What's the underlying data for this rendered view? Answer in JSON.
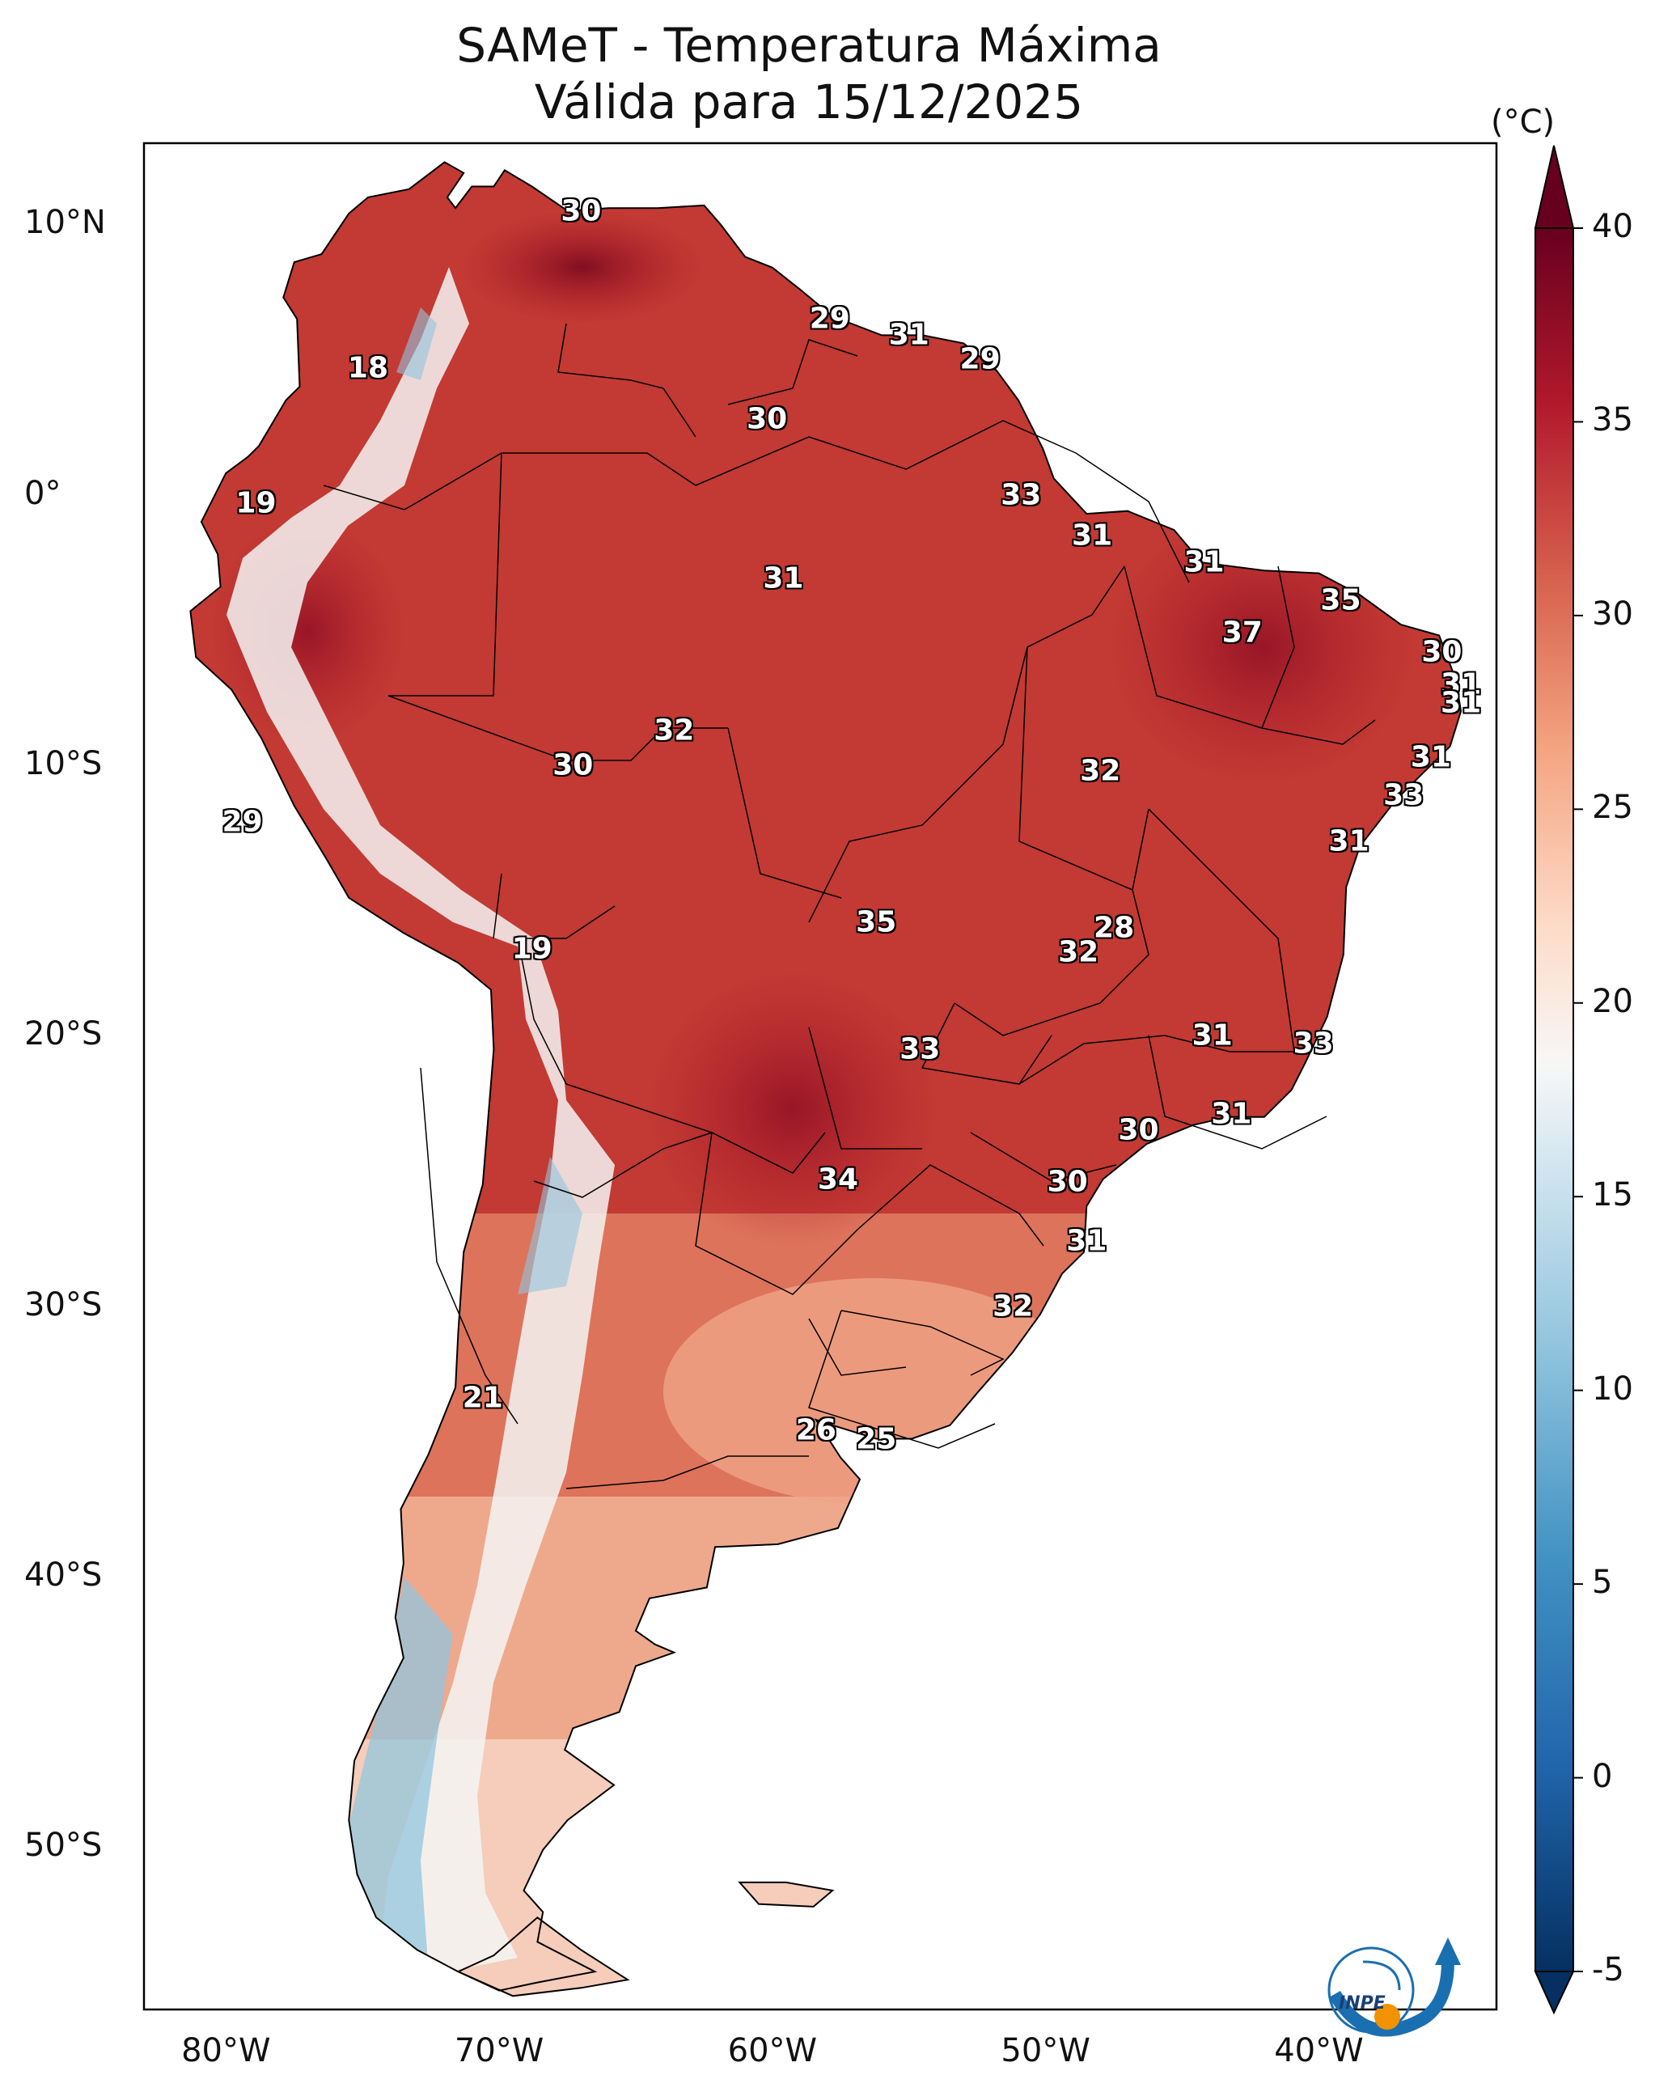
{
  "title": {
    "line1": "SAMeT - Temperatura Máxima",
    "line2": "Válida para 15/12/2025"
  },
  "map": {
    "lat_ticks": [
      {
        "lat": 10,
        "label": "10°N"
      },
      {
        "lat": 0,
        "label": "0°"
      },
      {
        "lat": -10,
        "label": "10°S"
      },
      {
        "lat": -20,
        "label": "20°S"
      },
      {
        "lat": -30,
        "label": "30°S"
      },
      {
        "lat": -40,
        "label": "40°S"
      },
      {
        "lat": -50,
        "label": "50°S"
      }
    ],
    "lon_ticks": [
      {
        "lon": -80,
        "label": "80°W"
      },
      {
        "lon": -70,
        "label": "70°W"
      },
      {
        "lon": -60,
        "label": "60°W"
      },
      {
        "lon": -50,
        "label": "50°W"
      },
      {
        "lon": -40,
        "label": "40°W"
      }
    ],
    "extent": {
      "lon_min": -83,
      "lon_max": -33.5,
      "lat_min": -56,
      "lat_max": 13
    },
    "temperature_labels": [
      {
        "value": "30",
        "lat": 10.5,
        "lon": -67
      },
      {
        "value": "29",
        "lat": 6.5,
        "lon": -57.9
      },
      {
        "value": "31",
        "lat": 5.9,
        "lon": -55.0
      },
      {
        "value": "29",
        "lat": 5.0,
        "lon": -52.4
      },
      {
        "value": "18",
        "lat": 4.7,
        "lon": -74.8
      },
      {
        "value": "30",
        "lat": 2.8,
        "lon": -60.2
      },
      {
        "value": "19",
        "lat": -0.3,
        "lon": -78.9
      },
      {
        "value": "33",
        "lat": 0.0,
        "lon": -50.9
      },
      {
        "value": "31",
        "lat": -1.5,
        "lon": -48.3
      },
      {
        "value": "31",
        "lat": -2.5,
        "lon": -44.2
      },
      {
        "value": "31",
        "lat": -3.1,
        "lon": -59.6
      },
      {
        "value": "35",
        "lat": -3.9,
        "lon": -39.2
      },
      {
        "value": "37",
        "lat": -5.1,
        "lon": -42.8
      },
      {
        "value": "30",
        "lat": -5.8,
        "lon": -35.5
      },
      {
        "value": "31",
        "lat": -7.0,
        "lon": -34.8
      },
      {
        "value": "31",
        "lat": -7.7,
        "lon": -34.8
      },
      {
        "value": "32",
        "lat": -8.7,
        "lon": -63.6
      },
      {
        "value": "30",
        "lat": -10.0,
        "lon": -67.3
      },
      {
        "value": "32",
        "lat": -10.2,
        "lon": -48.0
      },
      {
        "value": "31",
        "lat": -9.7,
        "lon": -35.9
      },
      {
        "value": "33",
        "lat": -11.1,
        "lon": -36.9
      },
      {
        "value": "29",
        "lat": -12.1,
        "lon": -79.4
      },
      {
        "value": "31",
        "lat": -12.8,
        "lon": -38.9
      },
      {
        "value": "35",
        "lat": -15.8,
        "lon": -56.2
      },
      {
        "value": "28",
        "lat": -16.0,
        "lon": -47.5
      },
      {
        "value": "32",
        "lat": -16.9,
        "lon": -48.8
      },
      {
        "value": "19",
        "lat": -16.8,
        "lon": -68.8
      },
      {
        "value": "31",
        "lat": -20.0,
        "lon": -43.9
      },
      {
        "value": "33",
        "lat": -20.3,
        "lon": -40.2
      },
      {
        "value": "33",
        "lat": -20.5,
        "lon": -54.6
      },
      {
        "value": "31",
        "lat": -22.9,
        "lon": -43.2
      },
      {
        "value": "30",
        "lat": -23.5,
        "lon": -46.6
      },
      {
        "value": "34",
        "lat": -25.3,
        "lon": -57.6
      },
      {
        "value": "30",
        "lat": -25.4,
        "lon": -49.2
      },
      {
        "value": "31",
        "lat": -27.6,
        "lon": -48.5
      },
      {
        "value": "32",
        "lat": -30.0,
        "lon": -51.2
      },
      {
        "value": "21",
        "lat": -33.4,
        "lon": -70.6
      },
      {
        "value": "26",
        "lat": -34.6,
        "lon": -58.4
      },
      {
        "value": "25",
        "lat": -34.9,
        "lon": -56.2
      }
    ]
  },
  "colorbar": {
    "unit": "(°C)",
    "min": -5,
    "max": 40,
    "ticks": [
      "40",
      "35",
      "30",
      "25",
      "20",
      "15",
      "10",
      "5",
      "0",
      "-5"
    ],
    "colors": [
      "#053061",
      "#2166ac",
      "#4393c3",
      "#92c5de",
      "#d1e5f0",
      "#f7f7f7",
      "#fddbc7",
      "#f4a582",
      "#d6604d",
      "#b2182b",
      "#67001f"
    ]
  },
  "logo": {
    "text": "INPE"
  }
}
